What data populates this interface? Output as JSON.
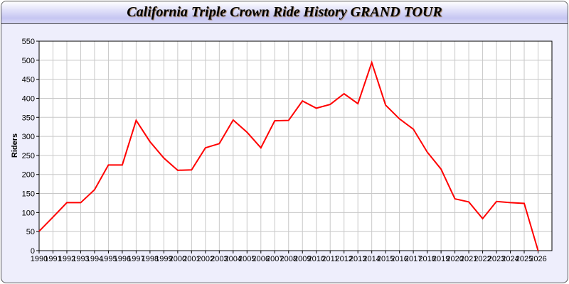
{
  "chart_data": {
    "type": "line",
    "title": "California Triple Crown Ride History GRAND TOUR",
    "xlabel": "",
    "ylabel": "Riders",
    "xlim": [
      1990,
      2027
    ],
    "ylim": [
      0,
      550
    ],
    "yticks": [
      0,
      50,
      100,
      150,
      200,
      250,
      300,
      350,
      400,
      450,
      500,
      550
    ],
    "grid": true,
    "line_color": "#ff0000",
    "x": [
      1990,
      1991,
      1992,
      1993,
      1994,
      1995,
      1996,
      1997,
      1998,
      1999,
      2000,
      2001,
      2002,
      2003,
      2004,
      2005,
      2006,
      2007,
      2008,
      2009,
      2010,
      2011,
      2012,
      2013,
      2014,
      2015,
      2016,
      2017,
      2018,
      2019,
      2020,
      2021,
      2022,
      2023,
      2024,
      2025,
      2026
    ],
    "series": [
      {
        "values": [
          51,
          88,
          126,
          126,
          160,
          225,
          225,
          342,
          286,
          243,
          211,
          212,
          270,
          281,
          343,
          311,
          270,
          341,
          342,
          393,
          374,
          384,
          412,
          386,
          494,
          382,
          346,
          319,
          259,
          214,
          136,
          128,
          84,
          129,
          126,
          124,
          0
        ]
      }
    ]
  }
}
